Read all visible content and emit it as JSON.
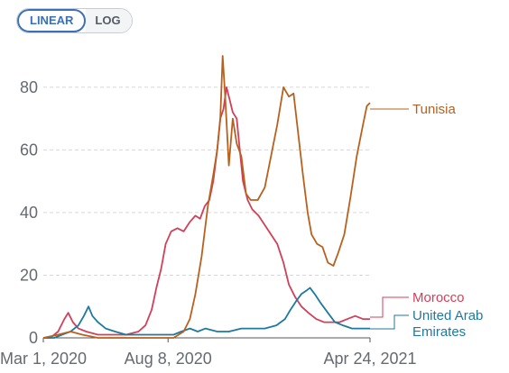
{
  "toggle": {
    "linear_label": "LINEAR",
    "log_label": "LOG"
  },
  "colors": {
    "tunisia": "#b8611e",
    "morocco": "#d0405a",
    "uae": "#1d7a9e",
    "grid": "#d8d8d8",
    "axis": "#555555"
  },
  "chart_data": {
    "type": "line",
    "title": "",
    "xlabel": "",
    "ylabel": "",
    "x_range": [
      "2020-03-01",
      "2021-04-24"
    ],
    "ylim": [
      0,
      90
    ],
    "y_ticks": [
      0,
      20,
      40,
      60,
      80
    ],
    "x_tick_labels": [
      "Mar 1, 2020",
      "Aug 8, 2020",
      "Apr 24, 2021"
    ],
    "x_tick_dates": [
      "2020-03-01",
      "2020-08-08",
      "2021-04-24"
    ],
    "grid": "horizontal dashed",
    "legend": "inline labels at right end of lines",
    "series": [
      {
        "name": "Tunisia",
        "points": [
          [
            "2020-03-01",
            0
          ],
          [
            "2020-03-20",
            1
          ],
          [
            "2020-04-05",
            2
          ],
          [
            "2020-04-20",
            1
          ],
          [
            "2020-05-10",
            0
          ],
          [
            "2020-06-15",
            0
          ],
          [
            "2020-07-15",
            0
          ],
          [
            "2020-08-15",
            0
          ],
          [
            "2020-08-28",
            2
          ],
          [
            "2020-09-05",
            6
          ],
          [
            "2020-09-12",
            14
          ],
          [
            "2020-09-20",
            26
          ],
          [
            "2020-09-28",
            42
          ],
          [
            "2020-10-05",
            52
          ],
          [
            "2020-10-10",
            60
          ],
          [
            "2020-10-14",
            70
          ],
          [
            "2020-10-17",
            90
          ],
          [
            "2020-10-20",
            78
          ],
          [
            "2020-10-25",
            55
          ],
          [
            "2020-10-30",
            70
          ],
          [
            "2020-11-04",
            62
          ],
          [
            "2020-11-10",
            58
          ],
          [
            "2020-11-16",
            46
          ],
          [
            "2020-11-22",
            44
          ],
          [
            "2020-12-01",
            44
          ],
          [
            "2020-12-10",
            48
          ],
          [
            "2020-12-18",
            58
          ],
          [
            "2020-12-26",
            68
          ],
          [
            "2021-01-03",
            80
          ],
          [
            "2021-01-10",
            77
          ],
          [
            "2021-01-16",
            78
          ],
          [
            "2021-01-22",
            65
          ],
          [
            "2021-01-28",
            52
          ],
          [
            "2021-02-03",
            40
          ],
          [
            "2021-02-08",
            33
          ],
          [
            "2021-02-15",
            30
          ],
          [
            "2021-02-22",
            29
          ],
          [
            "2021-03-01",
            24
          ],
          [
            "2021-03-08",
            23
          ],
          [
            "2021-03-14",
            27
          ],
          [
            "2021-03-22",
            33
          ],
          [
            "2021-03-30",
            45
          ],
          [
            "2021-04-07",
            58
          ],
          [
            "2021-04-15",
            68
          ],
          [
            "2021-04-20",
            74
          ],
          [
            "2021-04-24",
            75
          ]
        ]
      },
      {
        "name": "Morocco",
        "points": [
          [
            "2020-03-01",
            0
          ],
          [
            "2020-03-10",
            0
          ],
          [
            "2020-03-20",
            2
          ],
          [
            "2020-03-28",
            6
          ],
          [
            "2020-04-02",
            8
          ],
          [
            "2020-04-08",
            5
          ],
          [
            "2020-04-15",
            3
          ],
          [
            "2020-04-25",
            2
          ],
          [
            "2020-05-10",
            1
          ],
          [
            "2020-06-01",
            1
          ],
          [
            "2020-06-15",
            1
          ],
          [
            "2020-07-01",
            2
          ],
          [
            "2020-07-10",
            4
          ],
          [
            "2020-07-18",
            9
          ],
          [
            "2020-07-24",
            16
          ],
          [
            "2020-07-30",
            22
          ],
          [
            "2020-08-05",
            30
          ],
          [
            "2020-08-12",
            34
          ],
          [
            "2020-08-20",
            35
          ],
          [
            "2020-08-28",
            34
          ],
          [
            "2020-09-05",
            37
          ],
          [
            "2020-09-12",
            39
          ],
          [
            "2020-09-18",
            38
          ],
          [
            "2020-09-24",
            42
          ],
          [
            "2020-09-30",
            44
          ],
          [
            "2020-10-05",
            50
          ],
          [
            "2020-10-10",
            60
          ],
          [
            "2020-10-14",
            70
          ],
          [
            "2020-10-18",
            73
          ],
          [
            "2020-10-22",
            80
          ],
          [
            "2020-10-26",
            76
          ],
          [
            "2020-10-30",
            72
          ],
          [
            "2020-11-04",
            70
          ],
          [
            "2020-11-08",
            60
          ],
          [
            "2020-11-12",
            50
          ],
          [
            "2020-11-18",
            44
          ],
          [
            "2020-11-24",
            41
          ],
          [
            "2020-12-02",
            39
          ],
          [
            "2020-12-10",
            36
          ],
          [
            "2020-12-18",
            33
          ],
          [
            "2020-12-26",
            30
          ],
          [
            "2021-01-03",
            24
          ],
          [
            "2021-01-10",
            17
          ],
          [
            "2021-01-18",
            13
          ],
          [
            "2021-01-26",
            10
          ],
          [
            "2021-02-04",
            8
          ],
          [
            "2021-02-14",
            6
          ],
          [
            "2021-02-24",
            5
          ],
          [
            "2021-03-06",
            5
          ],
          [
            "2021-03-16",
            5
          ],
          [
            "2021-03-26",
            6
          ],
          [
            "2021-04-05",
            7
          ],
          [
            "2021-04-15",
            6
          ],
          [
            "2021-04-24",
            6
          ]
        ]
      },
      {
        "name": "United Arab Emirates",
        "points": [
          [
            "2020-03-01",
            0
          ],
          [
            "2020-03-15",
            0
          ],
          [
            "2020-03-25",
            1
          ],
          [
            "2020-04-05",
            2
          ],
          [
            "2020-04-15",
            4
          ],
          [
            "2020-04-22",
            7
          ],
          [
            "2020-04-28",
            10
          ],
          [
            "2020-05-03",
            7
          ],
          [
            "2020-05-10",
            5
          ],
          [
            "2020-05-20",
            3
          ],
          [
            "2020-06-01",
            2
          ],
          [
            "2020-06-15",
            1
          ],
          [
            "2020-07-01",
            1
          ],
          [
            "2020-07-15",
            1
          ],
          [
            "2020-08-01",
            1
          ],
          [
            "2020-08-15",
            1
          ],
          [
            "2020-08-25",
            2
          ],
          [
            "2020-09-05",
            3
          ],
          [
            "2020-09-15",
            2
          ],
          [
            "2020-09-25",
            3
          ],
          [
            "2020-10-10",
            2
          ],
          [
            "2020-10-25",
            2
          ],
          [
            "2020-11-10",
            3
          ],
          [
            "2020-11-25",
            3
          ],
          [
            "2020-12-10",
            3
          ],
          [
            "2020-12-25",
            4
          ],
          [
            "2021-01-05",
            6
          ],
          [
            "2021-01-12",
            9
          ],
          [
            "2021-01-20",
            12
          ],
          [
            "2021-01-26",
            14
          ],
          [
            "2021-02-01",
            15
          ],
          [
            "2021-02-06",
            16
          ],
          [
            "2021-02-12",
            14
          ],
          [
            "2021-02-20",
            11
          ],
          [
            "2021-03-01",
            8
          ],
          [
            "2021-03-10",
            5
          ],
          [
            "2021-03-20",
            4
          ],
          [
            "2021-04-01",
            3
          ],
          [
            "2021-04-12",
            3
          ],
          [
            "2021-04-24",
            3
          ]
        ]
      }
    ],
    "end_labels": {
      "tunisia": "Tunisia",
      "morocco": "Morocco",
      "uae_line1": "United Arab",
      "uae_line2": "Emirates"
    }
  }
}
